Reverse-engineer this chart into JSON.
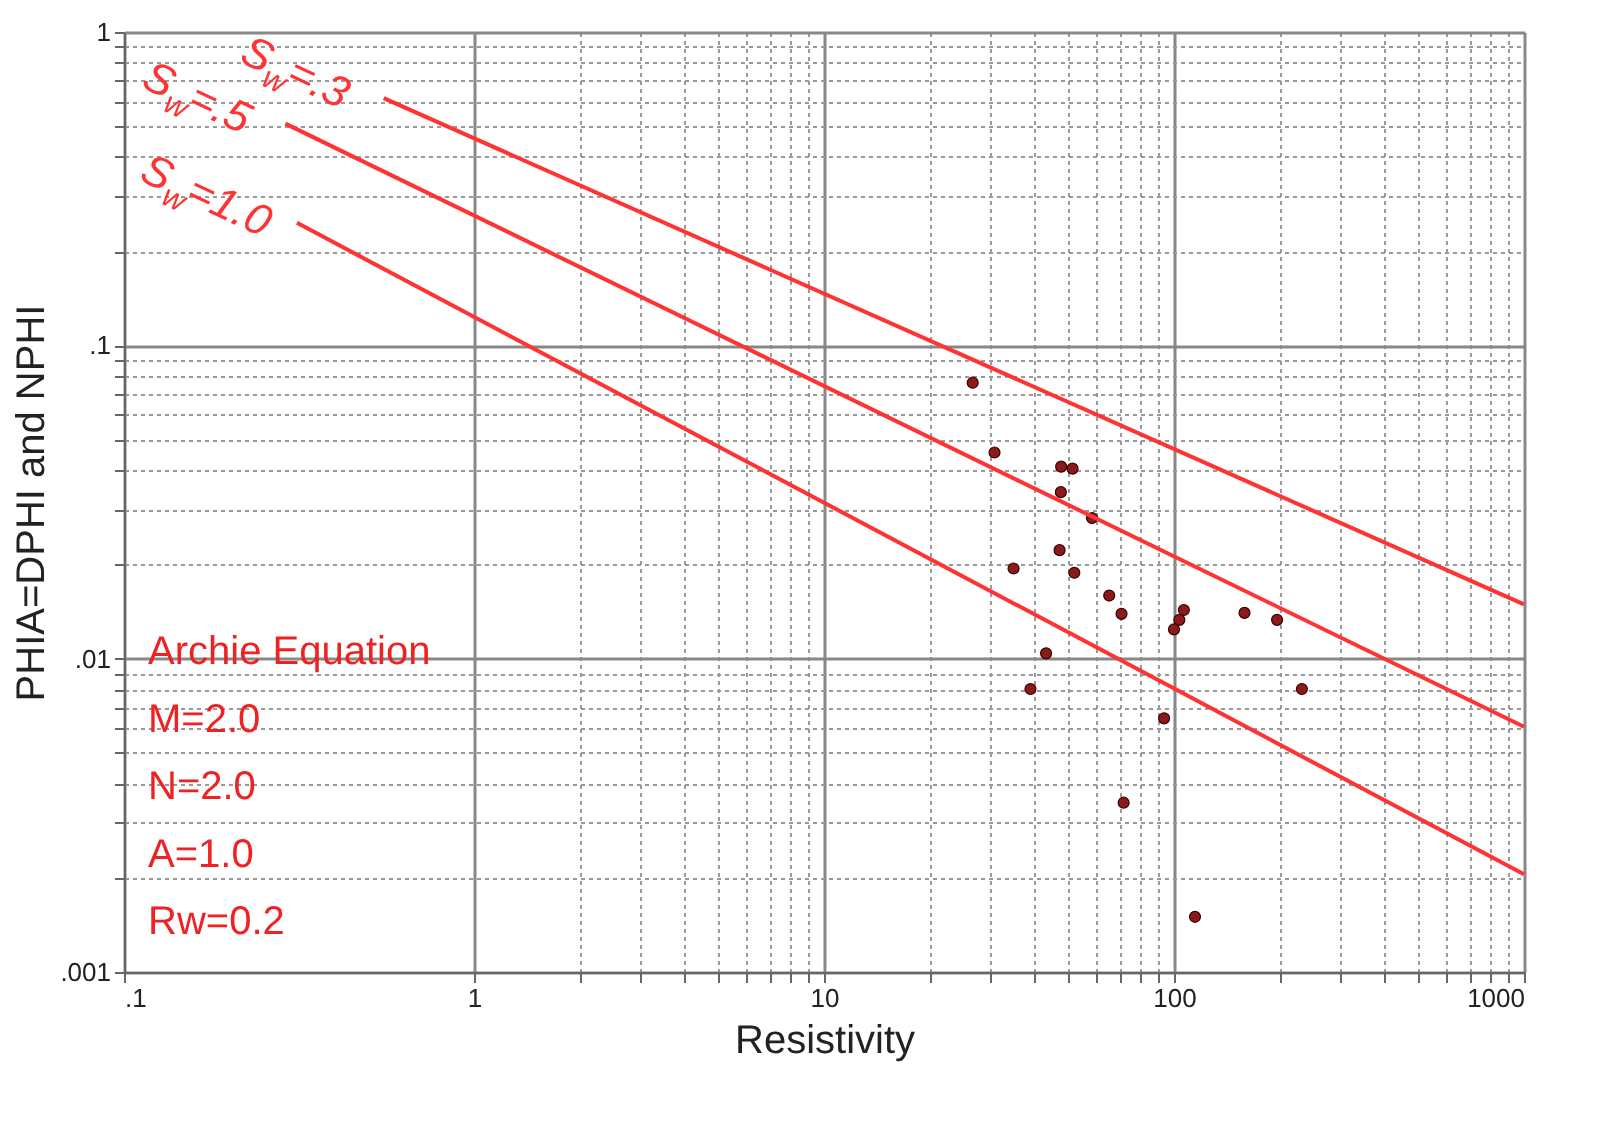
{
  "chart_data": {
    "type": "scatter",
    "xlabel": "Resistivity",
    "ylabel": "PHIA=DPHI and NPHI",
    "log": "xy",
    "grid": true,
    "legend": false,
    "marker": "circle",
    "xlim": [
      0.1,
      1000
    ],
    "ylim": [
      0.001,
      1
    ],
    "xticks": [
      {
        "value": 0.1,
        "label": ".1"
      },
      1,
      10,
      100,
      1000,
      {
        "value": 2,
        "label": null
      },
      {
        "value": 3,
        "label": null
      },
      {
        "value": 4,
        "label": null
      },
      {
        "value": 5,
        "label": null
      },
      {
        "value": 6,
        "label": null
      },
      {
        "value": 7,
        "label": null
      },
      {
        "value": 8,
        "label": null
      },
      {
        "value": 9,
        "label": null
      },
      {
        "value": 20,
        "label": null
      },
      {
        "value": 30,
        "label": null
      },
      {
        "value": 40,
        "label": null
      },
      {
        "value": 50,
        "label": null
      },
      {
        "value": 60,
        "label": null
      },
      {
        "value": 70,
        "label": null
      },
      {
        "value": 80,
        "label": null
      },
      {
        "value": 90,
        "label": null
      },
      {
        "value": 200,
        "label": null
      },
      {
        "value": 300,
        "label": null
      },
      {
        "value": 400,
        "label": null
      },
      {
        "value": 500,
        "label": null
      },
      {
        "value": 600,
        "label": null
      },
      {
        "value": 700,
        "label": null
      },
      {
        "value": 800,
        "label": null
      },
      {
        "value": 900,
        "label": null
      }
    ],
    "yticks": [
      {
        "value": 0.001,
        "label": ".001"
      },
      {
        "value": 0.01,
        "label": ".01"
      },
      {
        "value": 0.1,
        "label": ".1"
      },
      1,
      {
        "value": 0.002,
        "label": null
      },
      {
        "value": 0.003,
        "label": null
      },
      {
        "value": 0.004,
        "label": null
      },
      {
        "value": 0.005,
        "label": null
      },
      {
        "value": 0.006,
        "label": null
      },
      {
        "value": 0.007,
        "label": null
      },
      {
        "value": 0.008,
        "label": null
      },
      {
        "value": 0.009,
        "label": null
      },
      {
        "value": 0.02,
        "label": null
      },
      {
        "value": 0.03,
        "label": null
      },
      {
        "value": 0.04,
        "label": null
      },
      {
        "value": 0.05,
        "label": null
      },
      {
        "value": 0.06,
        "label": null
      },
      {
        "value": 0.07,
        "label": null
      },
      {
        "value": 0.08,
        "label": null
      },
      {
        "value": 0.09,
        "label": null
      },
      {
        "value": 0.2,
        "label": null
      },
      {
        "value": 0.3,
        "label": null
      },
      {
        "value": 0.4,
        "label": null
      },
      {
        "value": 0.5,
        "label": null
      },
      {
        "value": 0.6,
        "label": null
      },
      {
        "value": 0.7,
        "label": null
      },
      {
        "value": 0.8,
        "label": null
      },
      {
        "value": 0.9,
        "label": null
      }
    ],
    "series": [
      {
        "type": "scatter",
        "color": "#8b1a1a",
        "x": [
          26.6,
          30.7,
          47.6,
          51.3,
          47.5,
          58.3,
          47.1,
          34.8,
          51.9,
          65.3,
          70.8,
          106.7,
          103.6,
          100,
          159,
          197,
          43.1,
          38.9,
          232,
          93.7,
          71.8,
          114.8
        ],
        "values": [
          0.076,
          0.0455,
          0.041,
          0.0404,
          0.034,
          0.0281,
          0.0222,
          0.0194,
          0.0188,
          0.0159,
          0.0139,
          0.0143,
          0.0133,
          0.0124,
          0.014,
          0.0133,
          0.0104,
          0.008,
          0.008,
          0.00645,
          0.00347,
          0.0015
        ]
      },
      {
        "type": "line",
        "name": "S$_{w}$=.3",
        "color": "#ff3333",
        "line_style": "solid",
        "marker": "none",
        "x": [
          0.552,
          1000
        ],
        "values": [
          0.615,
          0.0149
        ]
      },
      {
        "type": "line",
        "name": "S$_{w}$=.5",
        "color": "#ff3333",
        "line_style": "solid",
        "marker": "none",
        "x": [
          0.289,
          1000
        ],
        "values": [
          0.51,
          0.00606
        ]
      },
      {
        "type": "line",
        "name": "S$_{w}$=1.0",
        "color": "#ff3333",
        "line_style": "solid",
        "marker": "none",
        "x": [
          0.312,
          1000
        ],
        "values": [
          0.246,
          0.00205
        ]
      }
    ],
    "annotations": [
      "Archie Equation",
      "M=2.0",
      "N=2.0",
      "A=1.0",
      "Rw=0.2"
    ]
  }
}
